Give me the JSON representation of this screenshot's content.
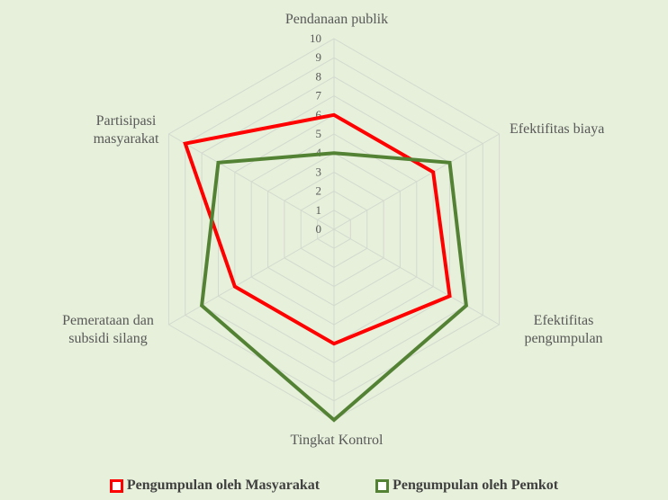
{
  "chart_data": {
    "type": "radar",
    "categories": [
      "Pendanaan publik",
      "Efektifitas biaya",
      "Efektifitas pengumpulan",
      "Tingkat Kontrol",
      "Pemerataan dan subsidi silang",
      "Partisipasi masyarakat"
    ],
    "category_lines": [
      [
        "Pendanaan publik"
      ],
      [
        "Efektifitas biaya"
      ],
      [
        "Efektifitas",
        "pengumpulan"
      ],
      [
        "Tingkat Kontrol"
      ],
      [
        "Pemerataan dan",
        "subsidi silang"
      ],
      [
        "Partisipasi",
        "masyarakat"
      ]
    ],
    "rlim": [
      0,
      10
    ],
    "ticks": [
      "0",
      "1",
      "2",
      "3",
      "4",
      "5",
      "6",
      "7",
      "8",
      "9",
      "10"
    ],
    "grid": true,
    "legend_position": "bottom",
    "series": [
      {
        "name": "Pengumpulan oleh Masyarakat",
        "color": "#ff0000",
        "values": [
          6,
          6,
          7,
          6,
          6,
          9
        ]
      },
      {
        "name": "Pengumpulan oleh Pemkot",
        "color": "#548235",
        "values": [
          4,
          7,
          8,
          10,
          8,
          7
        ]
      }
    ]
  }
}
